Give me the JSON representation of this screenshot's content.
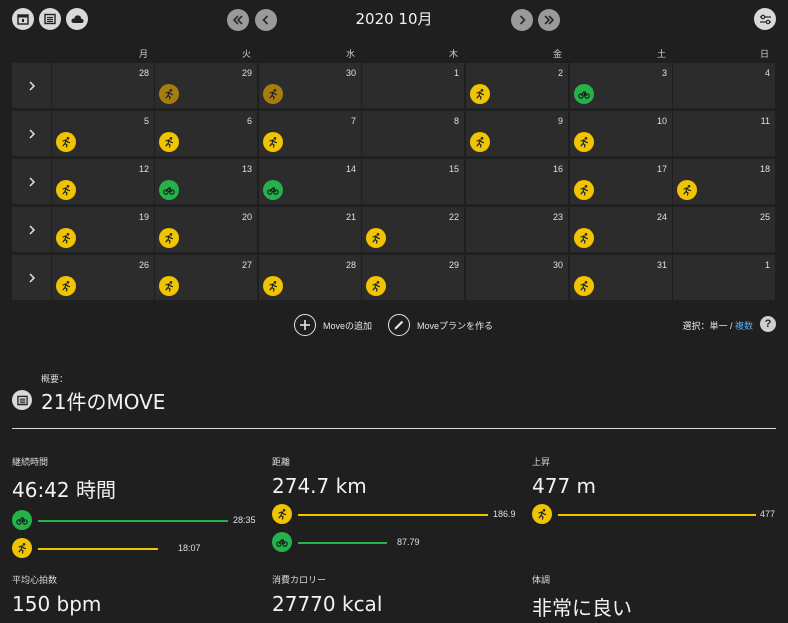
{
  "toolbar": {
    "views": [
      "calendar-day-icon",
      "calendar-list-icon",
      "cloud-icon"
    ],
    "settings_icon": "sliders-icon"
  },
  "calendar": {
    "title": "2020 10月",
    "weekdays": [
      "月",
      "火",
      "水",
      "木",
      "金",
      "土",
      "日"
    ],
    "weeks": [
      [
        {
          "day": "28",
          "m": []
        },
        {
          "day": "29",
          "m": [
            "dim"
          ]
        },
        {
          "day": "30",
          "m": [
            "dim"
          ]
        },
        {
          "day": "1",
          "m": []
        },
        {
          "day": "2",
          "m": [
            "yellow"
          ]
        },
        {
          "day": "3",
          "m": [
            "green"
          ]
        },
        {
          "day": "4",
          "m": []
        }
      ],
      [
        {
          "day": "5",
          "m": [
            "yellow"
          ]
        },
        {
          "day": "6",
          "m": [
            "yellow"
          ]
        },
        {
          "day": "7",
          "m": [
            "yellow"
          ]
        },
        {
          "day": "8",
          "m": []
        },
        {
          "day": "9",
          "m": [
            "yellow"
          ]
        },
        {
          "day": "10",
          "m": [
            "yellow"
          ]
        },
        {
          "day": "11",
          "m": []
        }
      ],
      [
        {
          "day": "12",
          "m": [
            "yellow"
          ]
        },
        {
          "day": "13",
          "m": [
            "green"
          ]
        },
        {
          "day": "14",
          "m": [
            "green"
          ]
        },
        {
          "day": "15",
          "m": []
        },
        {
          "day": "16",
          "m": []
        },
        {
          "day": "17",
          "m": [
            "yellow"
          ]
        },
        {
          "day": "18",
          "m": [
            "yellow"
          ]
        }
      ],
      [
        {
          "day": "19",
          "m": [
            "yellow"
          ]
        },
        {
          "day": "20",
          "m": [
            "yellow"
          ]
        },
        {
          "day": "21",
          "m": []
        },
        {
          "day": "22",
          "m": [
            "yellow"
          ]
        },
        {
          "day": "23",
          "m": []
        },
        {
          "day": "24",
          "m": [
            "yellow"
          ]
        },
        {
          "day": "25",
          "m": []
        }
      ],
      [
        {
          "day": "26",
          "m": [
            "yellow"
          ]
        },
        {
          "day": "27",
          "m": [
            "yellow"
          ]
        },
        {
          "day": "28",
          "m": [
            "yellow"
          ]
        },
        {
          "day": "29",
          "m": [
            "yellow"
          ]
        },
        {
          "day": "30",
          "m": []
        },
        {
          "day": "31",
          "m": [
            "yellow"
          ]
        },
        {
          "day": "1",
          "m": []
        }
      ]
    ]
  },
  "actions": {
    "add_move": "Moveの追加",
    "create_plan": "Moveプランを作る",
    "select_label": "選択：",
    "single": "単一",
    "separator": " / ",
    "multiple": "複数",
    "help": "?"
  },
  "summary": {
    "label": "概要：",
    "title": "21件のMOVE"
  },
  "stats": {
    "duration": {
      "label": "継続時間",
      "value": "46:42 時間",
      "green": "28:35",
      "green_frac": 1.0,
      "yellow": "18:07",
      "yellow_frac": 0.634
    },
    "distance": {
      "label": "距離",
      "value": "274.7 km",
      "yellow": "186.9",
      "yellow_frac": 1.0,
      "green": "87.79",
      "green_frac": 0.47
    },
    "ascent": {
      "label": "上昇",
      "value": "477 m",
      "yellow": "477",
      "yellow_frac": 1.0
    },
    "heart_rate": {
      "label": "平均心拍数",
      "value": "150 bpm"
    },
    "calories": {
      "label": "消費カロリー",
      "value": "27770 kcal"
    },
    "condition": {
      "label": "体調",
      "value": "非常に良い"
    }
  },
  "colors": {
    "accent_yellow": "#f0c400",
    "accent_green": "#25b24b",
    "link_blue": "#4fb0ff"
  }
}
